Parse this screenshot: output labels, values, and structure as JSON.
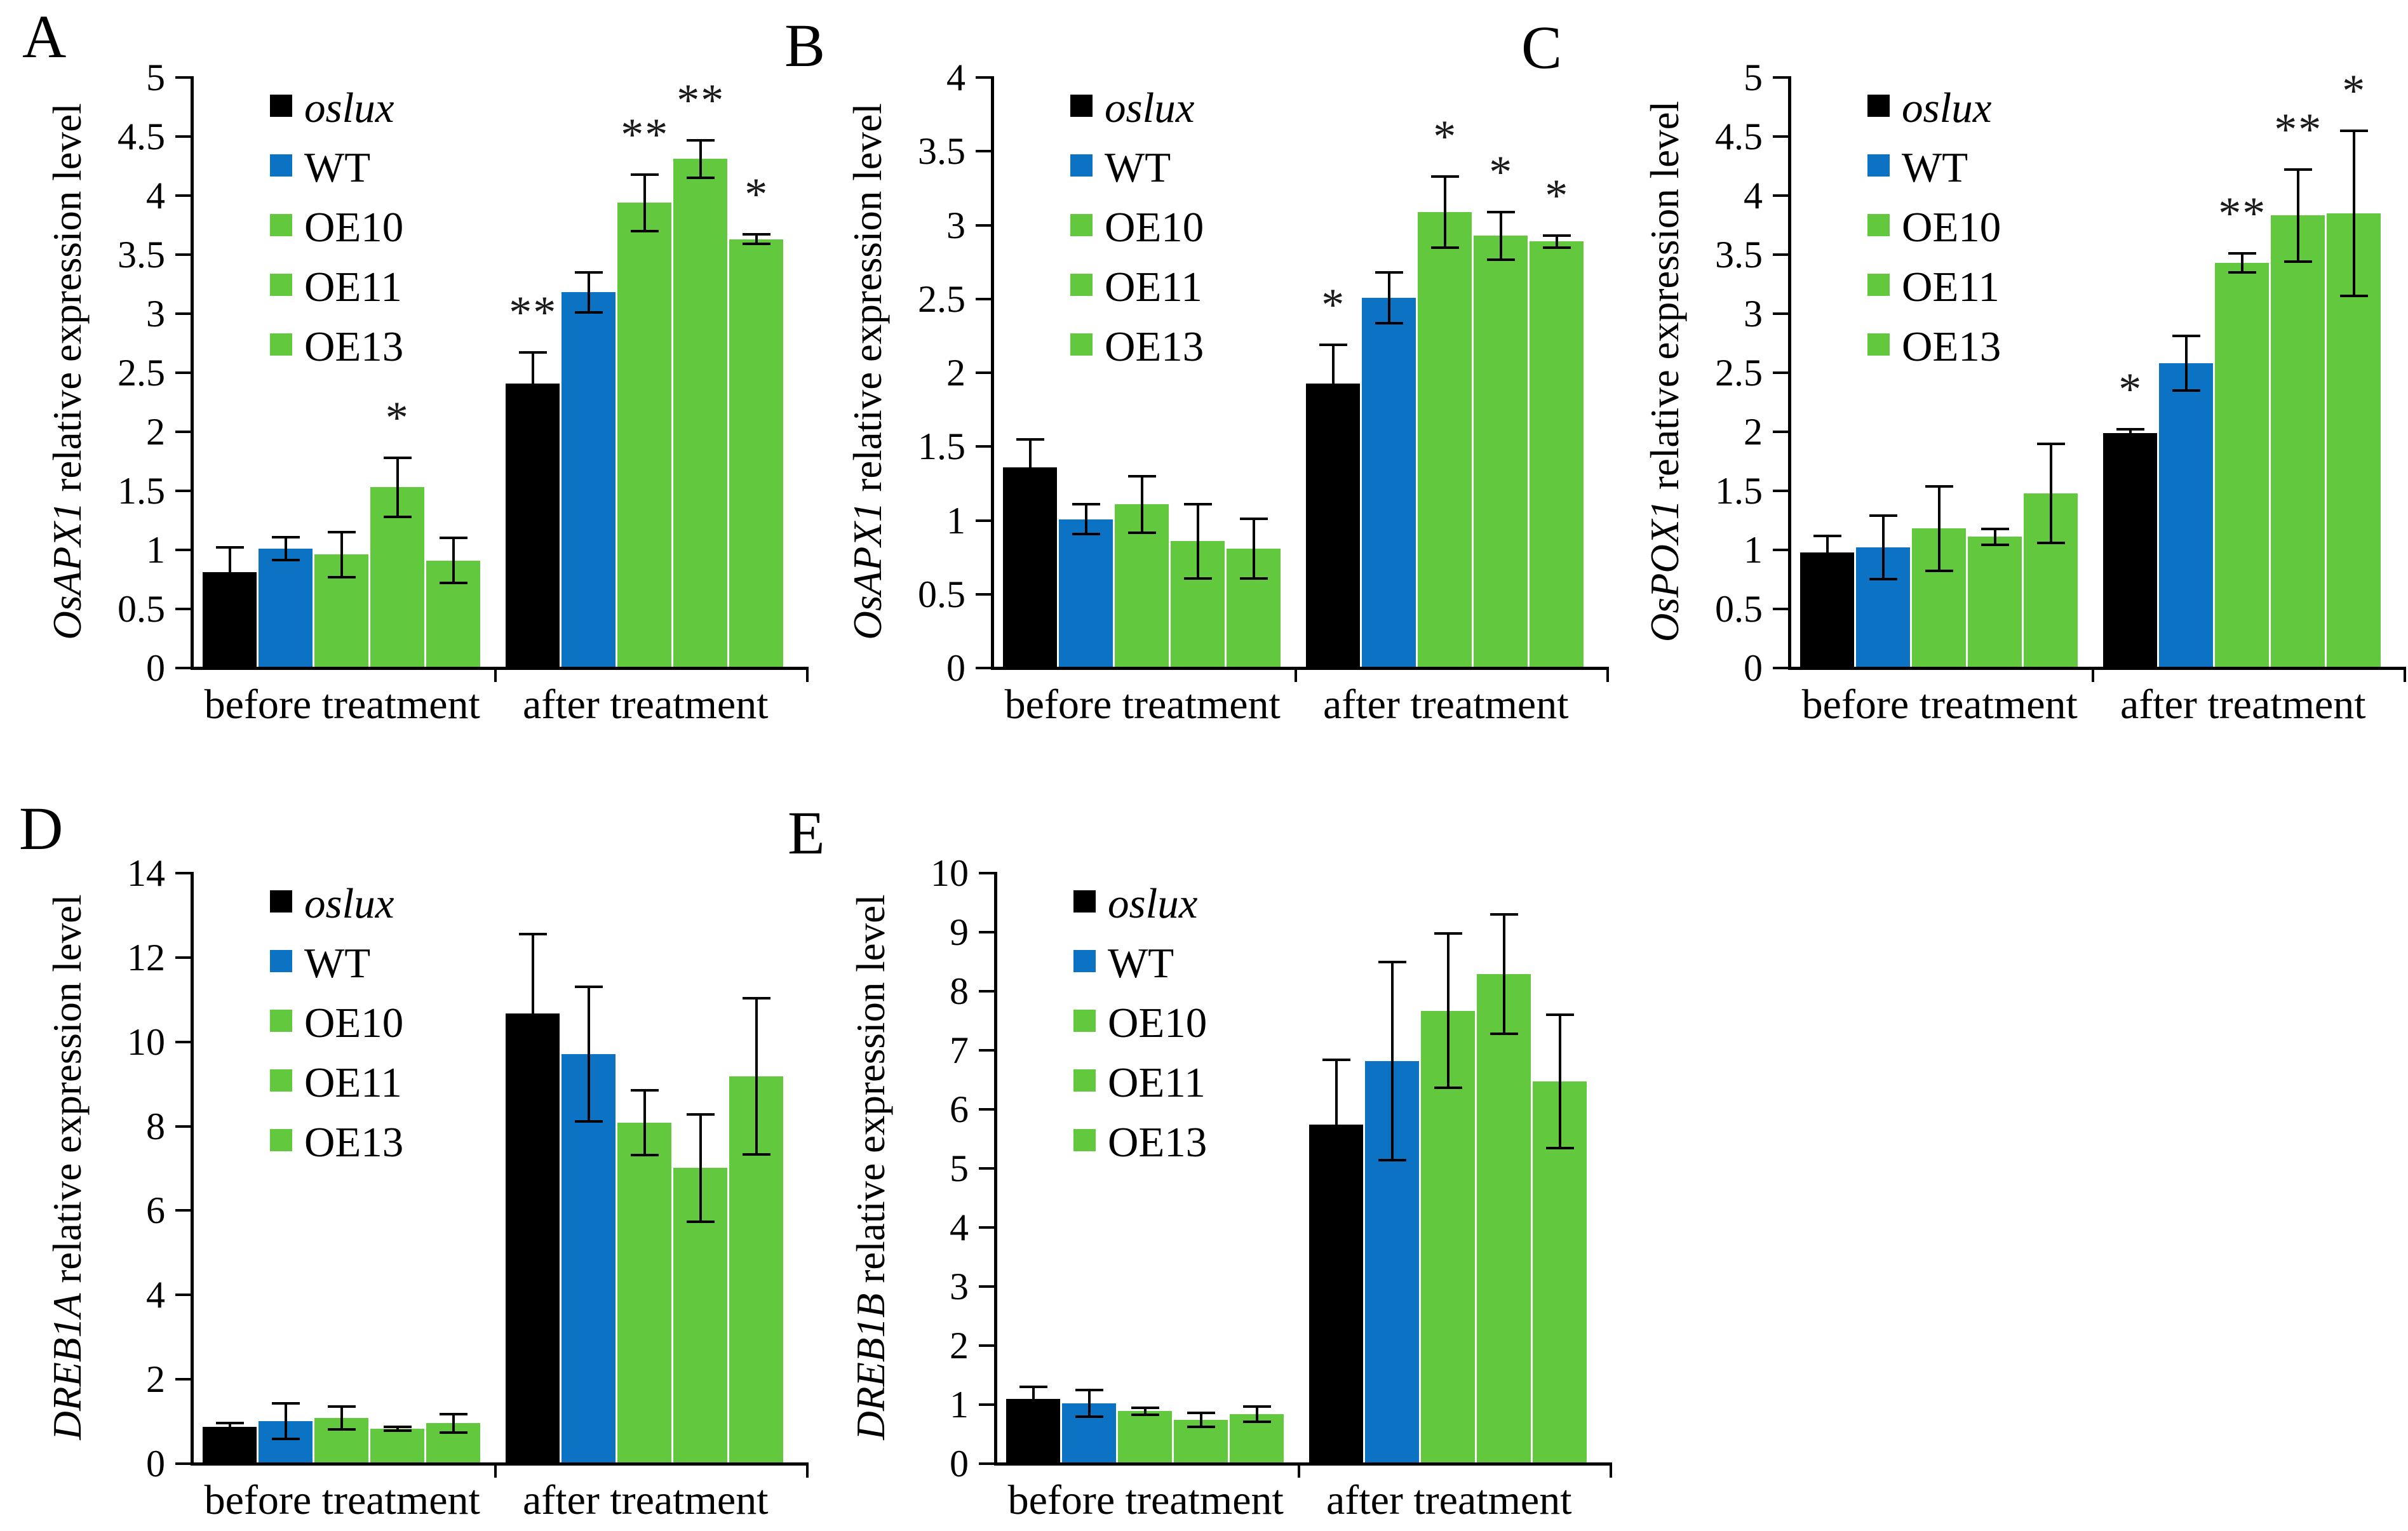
{
  "figure": {
    "background": "#ffffff",
    "colors": {
      "black": "#000000",
      "blue": "#0B72C4",
      "green": "#62C93E"
    },
    "error_bar_color": "#000000",
    "axis_color": "#000000",
    "legend_labels": [
      "oslux",
      "WT",
      "OE10",
      "OE11",
      "OE13"
    ]
  },
  "chart_data": [
    {
      "type": "bar",
      "panel": "A",
      "gene": "OsAPX1",
      "ylabel_rest": "relative expression level",
      "ylim": [
        0,
        5
      ],
      "ytick_step": 0.5,
      "yticks": [
        "0",
        "0.5",
        "1",
        "1.5",
        "2",
        "2.5",
        "3",
        "3.5",
        "4",
        "4.5",
        "5"
      ],
      "categories": [
        "before treatment",
        "after treatment"
      ],
      "legend_position": "top-left-inside",
      "grid": false,
      "series": [
        {
          "name": "oslux",
          "color": "black",
          "values": [
            0.8,
            2.4
          ],
          "errors": [
            0.22,
            0.27
          ],
          "sig": [
            "",
            "**"
          ]
        },
        {
          "name": "WT",
          "color": "blue",
          "values": [
            1.0,
            3.17
          ],
          "errors": [
            0.11,
            0.18
          ],
          "sig": [
            "",
            ""
          ]
        },
        {
          "name": "OE10",
          "color": "green",
          "values": [
            0.95,
            3.93
          ],
          "errors": [
            0.2,
            0.25
          ],
          "sig": [
            "",
            "**"
          ]
        },
        {
          "name": "OE11",
          "color": "green",
          "values": [
            1.52,
            4.3
          ],
          "errors": [
            0.26,
            0.17
          ],
          "sig": [
            "*",
            "**"
          ]
        },
        {
          "name": "OE13",
          "color": "green",
          "values": [
            0.9,
            3.62
          ],
          "errors": [
            0.2,
            0.05
          ],
          "sig": [
            "",
            "*"
          ]
        }
      ]
    },
    {
      "type": "bar",
      "panel": "B",
      "gene": "OsAPX1",
      "ylabel_rest": "relative expression level",
      "ylim": [
        0,
        4
      ],
      "ytick_step": 0.5,
      "yticks": [
        "0",
        "0.5",
        "1",
        "1.5",
        "2",
        "2.5",
        "3",
        "3.5",
        "4"
      ],
      "categories": [
        "before treatment",
        "after treatment"
      ],
      "legend_position": "top-left-inside",
      "grid": false,
      "series": [
        {
          "name": "oslux",
          "color": "black",
          "values": [
            1.35,
            1.92
          ],
          "errors": [
            0.2,
            0.27
          ],
          "sig": [
            "",
            "*"
          ]
        },
        {
          "name": "WT",
          "color": "blue",
          "values": [
            1.0,
            2.5
          ],
          "errors": [
            0.11,
            0.18
          ],
          "sig": [
            "",
            ""
          ]
        },
        {
          "name": "OE10",
          "color": "green",
          "values": [
            1.1,
            3.08
          ],
          "errors": [
            0.2,
            0.25
          ],
          "sig": [
            "",
            "*"
          ]
        },
        {
          "name": "OE11",
          "color": "green",
          "values": [
            0.85,
            2.92
          ],
          "errors": [
            0.26,
            0.17
          ],
          "sig": [
            "",
            "*"
          ]
        },
        {
          "name": "OE13",
          "color": "green",
          "values": [
            0.8,
            2.88
          ],
          "errors": [
            0.21,
            0.05
          ],
          "sig": [
            "",
            "*"
          ]
        }
      ]
    },
    {
      "type": "bar",
      "panel": "C",
      "gene": "OsPOX1",
      "ylabel_rest": "relative expression level",
      "ylim": [
        0,
        5
      ],
      "ytick_step": 0.5,
      "yticks": [
        "0",
        "0.5",
        "1",
        "1.5",
        "2",
        "2.5",
        "3",
        "3.5",
        "4",
        "4.5",
        "5"
      ],
      "categories": [
        "before treatment",
        "after treatment"
      ],
      "legend_position": "top-left-inside",
      "grid": false,
      "series": [
        {
          "name": "oslux",
          "color": "black",
          "values": [
            0.97,
            1.98
          ],
          "errors": [
            0.15,
            0.04
          ],
          "sig": [
            "",
            "*"
          ]
        },
        {
          "name": "WT",
          "color": "blue",
          "values": [
            1.01,
            2.57
          ],
          "errors": [
            0.28,
            0.24
          ],
          "sig": [
            "",
            ""
          ]
        },
        {
          "name": "OE10",
          "color": "green",
          "values": [
            1.17,
            3.42
          ],
          "errors": [
            0.37,
            0.09
          ],
          "sig": [
            "",
            "**"
          ]
        },
        {
          "name": "OE11",
          "color": "green",
          "values": [
            1.1,
            3.82
          ],
          "errors": [
            0.08,
            0.4
          ],
          "sig": [
            "",
            "**"
          ]
        },
        {
          "name": "OE13",
          "color": "green",
          "values": [
            1.47,
            3.84
          ],
          "errors": [
            0.43,
            0.71
          ],
          "sig": [
            "",
            "*"
          ]
        }
      ]
    },
    {
      "type": "bar",
      "panel": "D",
      "gene": "DREB1A",
      "ylabel_rest": "relative expression level",
      "ylim": [
        0,
        14
      ],
      "ytick_step": 2,
      "yticks": [
        "0",
        "2",
        "4",
        "6",
        "8",
        "10",
        "12",
        "14"
      ],
      "categories": [
        "before treatment",
        "after treatment"
      ],
      "legend_position": "top-left-inside",
      "grid": false,
      "series": [
        {
          "name": "oslux",
          "color": "black",
          "values": [
            0.85,
            10.65
          ],
          "errors": [
            0.12,
            1.9
          ],
          "sig": [
            "",
            ""
          ]
        },
        {
          "name": "WT",
          "color": "blue",
          "values": [
            0.98,
            9.68
          ],
          "errors": [
            0.45,
            1.62
          ],
          "sig": [
            "",
            ""
          ]
        },
        {
          "name": "OE10",
          "color": "green",
          "values": [
            1.05,
            8.05
          ],
          "errors": [
            0.3,
            0.8
          ],
          "sig": [
            "",
            ""
          ]
        },
        {
          "name": "OE11",
          "color": "green",
          "values": [
            0.8,
            6.98
          ],
          "errors": [
            0.07,
            1.3
          ],
          "sig": [
            "",
            ""
          ]
        },
        {
          "name": "OE13",
          "color": "green",
          "values": [
            0.93,
            9.15
          ],
          "errors": [
            0.25,
            1.88
          ],
          "sig": [
            "",
            ""
          ]
        }
      ]
    },
    {
      "type": "bar",
      "panel": "E",
      "gene": "DREB1B",
      "ylabel_rest": "relative expression level",
      "ylim": [
        0,
        10
      ],
      "ytick_step": 1,
      "yticks": [
        "0",
        "1",
        "2",
        "3",
        "4",
        "5",
        "6",
        "7",
        "8",
        "9",
        "10"
      ],
      "categories": [
        "before treatment",
        "after treatment"
      ],
      "legend_position": "top-left-inside",
      "grid": false,
      "series": [
        {
          "name": "oslux",
          "color": "black",
          "values": [
            1.08,
            5.72
          ],
          "errors": [
            0.22,
            1.12
          ],
          "sig": [
            "",
            ""
          ]
        },
        {
          "name": "WT",
          "color": "blue",
          "values": [
            1.0,
            6.8
          ],
          "errors": [
            0.25,
            1.7
          ],
          "sig": [
            "",
            ""
          ]
        },
        {
          "name": "OE10",
          "color": "green",
          "values": [
            0.87,
            7.65
          ],
          "errors": [
            0.08,
            1.33
          ],
          "sig": [
            "",
            ""
          ]
        },
        {
          "name": "OE11",
          "color": "green",
          "values": [
            0.72,
            8.27
          ],
          "errors": [
            0.14,
            1.03
          ],
          "sig": [
            "",
            ""
          ]
        },
        {
          "name": "OE13",
          "color": "green",
          "values": [
            0.82,
            6.45
          ],
          "errors": [
            0.15,
            1.15
          ],
          "sig": [
            "",
            ""
          ]
        }
      ]
    }
  ]
}
